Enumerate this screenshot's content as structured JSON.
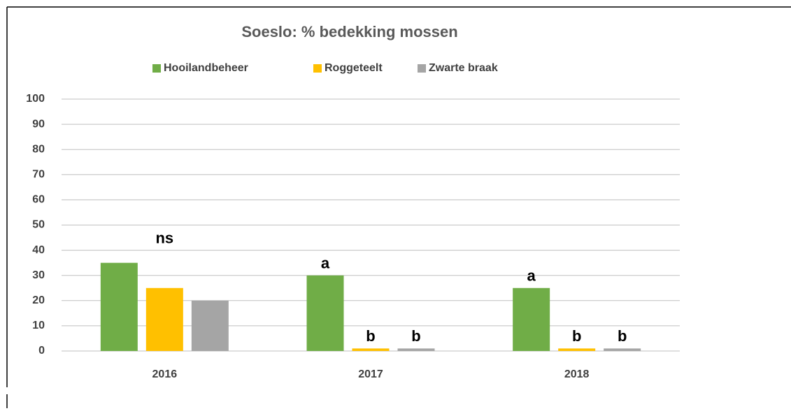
{
  "chart_data": {
    "type": "bar",
    "title": "Soeslo: % bedekking mossen",
    "categories": [
      "2016",
      "2017",
      "2018"
    ],
    "series": [
      {
        "name": "Hooilandbeheer",
        "color": "#70ad47",
        "values": [
          35,
          30,
          25
        ]
      },
      {
        "name": "Roggeteelt",
        "color": "#ffc000",
        "values": [
          25,
          1,
          1
        ]
      },
      {
        "name": "Zwarte braak",
        "color": "#a5a5a5",
        "values": [
          20,
          1,
          1
        ]
      }
    ],
    "annotations": [
      {
        "text": "ns",
        "category": 0
      },
      {
        "text": "a",
        "category": 1,
        "series": 0
      },
      {
        "text": "b",
        "category": 1,
        "series": 1
      },
      {
        "text": "b",
        "category": 1,
        "series": 2
      },
      {
        "text": "a",
        "category": 2,
        "series": 0
      },
      {
        "text": "b",
        "category": 2,
        "series": 1
      },
      {
        "text": "b",
        "category": 2,
        "series": 2
      }
    ],
    "ylim": [
      0,
      100
    ],
    "yticks": [
      0,
      10,
      20,
      30,
      40,
      50,
      60,
      70,
      80,
      90,
      100
    ],
    "grid": true,
    "legend": "top"
  }
}
